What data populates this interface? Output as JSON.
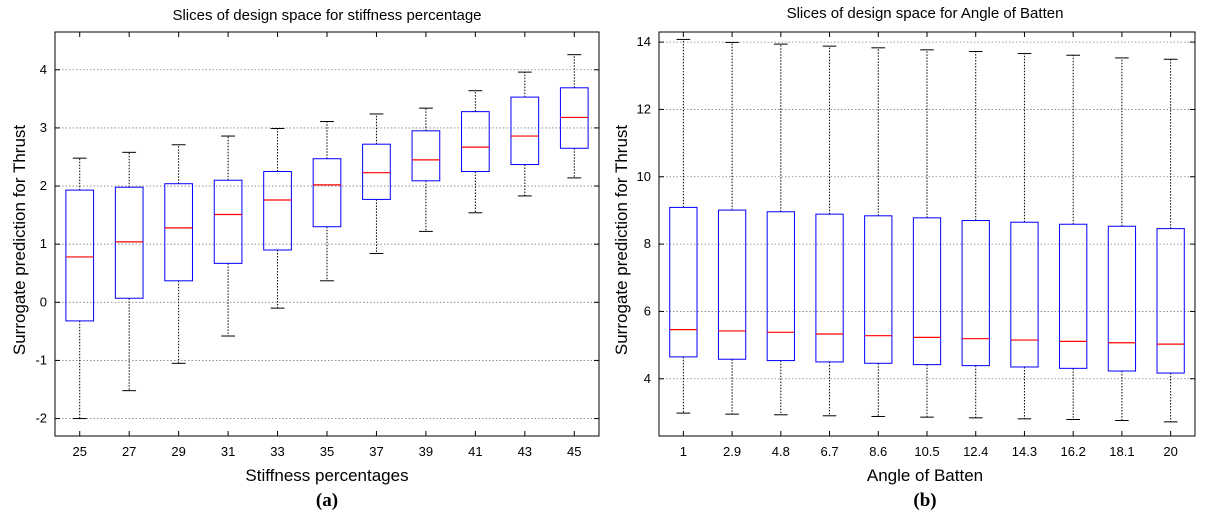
{
  "chart_data": [
    {
      "type": "box",
      "title": "Slices of design space for stiffness percentage",
      "xlabel": "Stiffness percentages",
      "ylabel": "Surrogate prediction for Thrust",
      "caption": "(a)",
      "ylim": [
        -2.3,
        4.65
      ],
      "yticks": [
        -2,
        -1,
        0,
        1,
        2,
        3,
        4
      ],
      "grid": "horizontal-dotted",
      "colors": {
        "box": "#0000ff",
        "median": "#ff0000",
        "whisker": "#000000",
        "grid": "#808080"
      },
      "categories": [
        "25",
        "27",
        "29",
        "31",
        "33",
        "35",
        "37",
        "39",
        "41",
        "43",
        "45"
      ],
      "boxes": [
        {
          "min": -2.0,
          "q1": -0.32,
          "median": 0.78,
          "q3": 1.93,
          "max": 2.48
        },
        {
          "min": -1.52,
          "q1": 0.07,
          "median": 1.04,
          "q3": 1.98,
          "max": 2.58
        },
        {
          "min": -1.05,
          "q1": 0.37,
          "median": 1.28,
          "q3": 2.04,
          "max": 2.71
        },
        {
          "min": -0.58,
          "q1": 0.67,
          "median": 1.51,
          "q3": 2.1,
          "max": 2.86
        },
        {
          "min": -0.1,
          "q1": 0.9,
          "median": 1.76,
          "q3": 2.25,
          "max": 2.99
        },
        {
          "min": 0.37,
          "q1": 1.3,
          "median": 2.02,
          "q3": 2.47,
          "max": 3.11
        },
        {
          "min": 0.84,
          "q1": 1.77,
          "median": 2.23,
          "q3": 2.72,
          "max": 3.24
        },
        {
          "min": 1.22,
          "q1": 2.09,
          "median": 2.45,
          "q3": 2.95,
          "max": 3.34
        },
        {
          "min": 1.54,
          "q1": 2.25,
          "median": 2.67,
          "q3": 3.28,
          "max": 3.64
        },
        {
          "min": 1.83,
          "q1": 2.37,
          "median": 2.86,
          "q3": 3.53,
          "max": 3.96
        },
        {
          "min": 2.14,
          "q1": 2.65,
          "median": 3.18,
          "q3": 3.69,
          "max": 4.26
        }
      ]
    },
    {
      "type": "box",
      "title": "Slices of design space for Angle of Batten",
      "xlabel": "Angle of Batten",
      "ylabel": "Surrogate prediction for Thrust",
      "caption": "(b)",
      "ylim": [
        2.3,
        14.3
      ],
      "yticks": [
        4,
        6,
        8,
        10,
        12,
        14
      ],
      "grid": "horizontal-dotted",
      "colors": {
        "box": "#0000ff",
        "median": "#ff0000",
        "whisker": "#000000",
        "grid": "#808080"
      },
      "categories": [
        "1",
        "2.9",
        "4.8",
        "6.7",
        "8.6",
        "10.5",
        "12.4",
        "14.3",
        "16.2",
        "18.1",
        "20"
      ],
      "boxes": [
        {
          "min": 2.98,
          "q1": 4.65,
          "median": 5.46,
          "q3": 9.09,
          "max": 14.08
        },
        {
          "min": 2.95,
          "q1": 4.58,
          "median": 5.42,
          "q3": 9.01,
          "max": 13.99
        },
        {
          "min": 2.93,
          "q1": 4.54,
          "median": 5.38,
          "q3": 8.96,
          "max": 13.94
        },
        {
          "min": 2.9,
          "q1": 4.5,
          "median": 5.33,
          "q3": 8.89,
          "max": 13.88
        },
        {
          "min": 2.88,
          "q1": 4.46,
          "median": 5.28,
          "q3": 8.84,
          "max": 13.83
        },
        {
          "min": 2.86,
          "q1": 4.42,
          "median": 5.23,
          "q3": 8.78,
          "max": 13.77
        },
        {
          "min": 2.84,
          "q1": 4.39,
          "median": 5.19,
          "q3": 8.7,
          "max": 13.72
        },
        {
          "min": 2.81,
          "q1": 4.35,
          "median": 5.15,
          "q3": 8.65,
          "max": 13.66
        },
        {
          "min": 2.79,
          "q1": 4.31,
          "median": 5.11,
          "q3": 8.59,
          "max": 13.61
        },
        {
          "min": 2.76,
          "q1": 4.23,
          "median": 5.07,
          "q3": 8.53,
          "max": 13.53
        },
        {
          "min": 2.72,
          "q1": 4.17,
          "median": 5.03,
          "q3": 8.46,
          "max": 13.49
        }
      ]
    }
  ]
}
